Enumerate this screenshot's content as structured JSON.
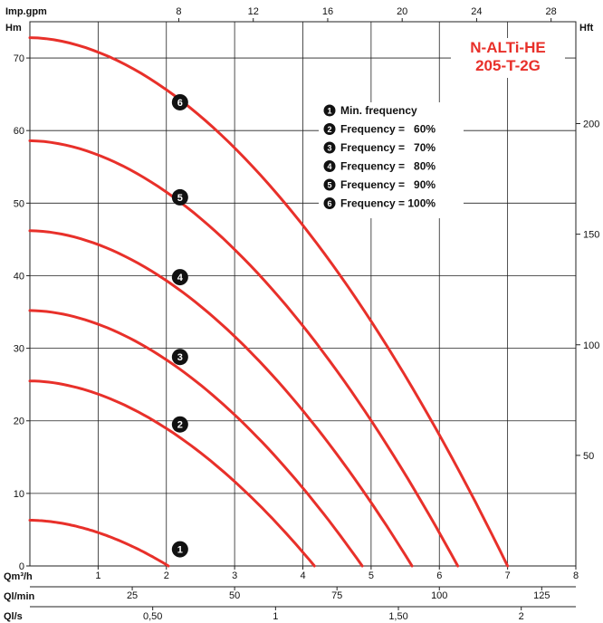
{
  "chart_data": {
    "type": "line",
    "title_lines": [
      "N-ALTi-HE",
      "205-T-2G"
    ],
    "title_color": "#e8302a",
    "curve_color": "#e8302a",
    "y_left": {
      "unit": "Hm",
      "range": [
        0,
        75
      ],
      "ticks": [
        0,
        10,
        20,
        30,
        40,
        50,
        60,
        70
      ]
    },
    "y_right": {
      "unit": "Hft",
      "ticks": [
        50,
        100,
        150,
        200
      ]
    },
    "x_top": {
      "unit": "Imp.gpm",
      "ticks": [
        8,
        12,
        16,
        20,
        24,
        28
      ]
    },
    "x_main": {
      "unit": "Qm³/h",
      "range": [
        0,
        8
      ],
      "ticks": [
        1,
        2,
        3,
        4,
        5,
        6,
        7,
        8
      ]
    },
    "x_lmin": {
      "unit": "Ql/min",
      "ticks": [
        25,
        50,
        75,
        100,
        125
      ]
    },
    "x_ls": {
      "unit": "Ql/s",
      "ticks": [
        "0,50",
        "1",
        "1,50",
        "2"
      ],
      "tick_values": [
        0.5,
        1,
        1.5,
        2
      ]
    },
    "legend": [
      {
        "num": "1",
        "label": "Min. frequency"
      },
      {
        "num": "2",
        "label": "Frequency =   60%"
      },
      {
        "num": "3",
        "label": "Frequency =   70%"
      },
      {
        "num": "4",
        "label": "Frequency =   80%"
      },
      {
        "num": "5",
        "label": "Frequency =   90%"
      },
      {
        "num": "6",
        "label": "Frequency = 100%"
      }
    ],
    "series": [
      {
        "id": "1",
        "shutoff_head": 6.3,
        "max_flow": 2.03,
        "badge": [
          2.2,
          2.3
        ]
      },
      {
        "id": "2",
        "shutoff_head": 25.5,
        "max_flow": 4.17,
        "badge": [
          2.2,
          19.5
        ]
      },
      {
        "id": "3",
        "shutoff_head": 35.2,
        "max_flow": 4.87,
        "badge": [
          2.2,
          28.8
        ]
      },
      {
        "id": "4",
        "shutoff_head": 46.2,
        "max_flow": 5.6,
        "badge": [
          2.2,
          39.8
        ]
      },
      {
        "id": "5",
        "shutoff_head": 58.6,
        "max_flow": 6.27,
        "badge": [
          2.2,
          50.8
        ]
      },
      {
        "id": "6",
        "shutoff_head": 72.8,
        "max_flow": 7.0,
        "badge": [
          2.2,
          63.9
        ]
      }
    ]
  }
}
